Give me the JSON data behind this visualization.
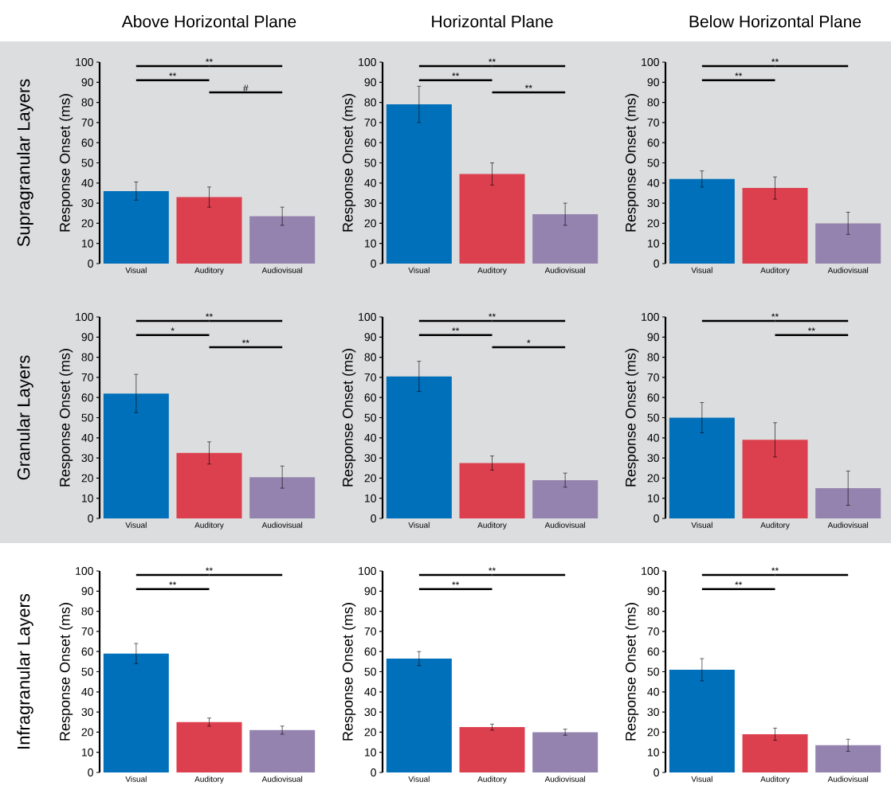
{
  "chart_data": [
    {
      "type": "bar",
      "title": "Above Horizontal Plane",
      "ylabel": "Response Onset (ms)",
      "categories": [
        "Visual",
        "Auditory",
        "Audiovisual"
      ],
      "values": [
        36,
        33,
        23.5
      ],
      "errors": [
        4.5,
        5,
        4.5
      ],
      "colors": [
        "#0070ba",
        "#dc3f4d",
        "#9383ae"
      ],
      "ylim": [
        0,
        100
      ],
      "yticks": [
        0,
        10,
        20,
        30,
        40,
        50,
        60,
        70,
        80,
        90,
        100
      ],
      "annotations": [
        "Supragranular Layers",
        "**",
        "**",
        "#"
      ]
    },
    {
      "type": "bar",
      "title": "Horizontal Plane",
      "ylabel": "Response Onset (ms)",
      "categories": [
        "Visual",
        "Auditory",
        "Audiovisual"
      ],
      "values": [
        79,
        44.5,
        24.5
      ],
      "errors": [
        9,
        5.5,
        5.5
      ],
      "colors": [
        "#0070ba",
        "#dc3f4d",
        "#9383ae"
      ],
      "ylim": [
        0,
        100
      ],
      "yticks": [
        0,
        10,
        20,
        30,
        40,
        50,
        60,
        70,
        80,
        90,
        100
      ],
      "annotations": [
        "**",
        "**",
        "**"
      ]
    },
    {
      "type": "bar",
      "title": "Below Horizontal Plane",
      "ylabel": "Response Onset (ms)",
      "categories": [
        "Visual",
        "Auditory",
        "Audiovisual"
      ],
      "values": [
        42,
        37.5,
        20
      ],
      "errors": [
        4,
        5.5,
        5.5
      ],
      "colors": [
        "#0070ba",
        "#dc3f4d",
        "#9383ae"
      ],
      "ylim": [
        0,
        100
      ],
      "yticks": [
        0,
        10,
        20,
        30,
        40,
        50,
        60,
        70,
        80,
        90,
        100
      ],
      "annotations": [
        "**",
        "**"
      ]
    },
    {
      "type": "bar",
      "ylabel": "Response Onset (ms)",
      "categories": [
        "Visual",
        "Auditory",
        "Audiovisual"
      ],
      "values": [
        62,
        32.5,
        20.5
      ],
      "errors": [
        9.5,
        5.5,
        5.5
      ],
      "colors": [
        "#0070ba",
        "#dc3f4d",
        "#9383ae"
      ],
      "ylim": [
        0,
        100
      ],
      "yticks": [
        0,
        10,
        20,
        30,
        40,
        50,
        60,
        70,
        80,
        90,
        100
      ],
      "annotations": [
        "Granular Layers",
        "**",
        "*",
        "**"
      ]
    },
    {
      "type": "bar",
      "ylabel": "Response Onset (ms)",
      "categories": [
        "Visual",
        "Auditory",
        "Audiovisual"
      ],
      "values": [
        70.5,
        27.5,
        19
      ],
      "errors": [
        7.5,
        3.5,
        3.5
      ],
      "colors": [
        "#0070ba",
        "#dc3f4d",
        "#9383ae"
      ],
      "ylim": [
        0,
        100
      ],
      "yticks": [
        0,
        10,
        20,
        30,
        40,
        50,
        60,
        70,
        80,
        90,
        100
      ],
      "annotations": [
        "**",
        "**",
        "*"
      ]
    },
    {
      "type": "bar",
      "ylabel": "Response Onset (ms)",
      "categories": [
        "Visual",
        "Auditory",
        "Audiovisual"
      ],
      "values": [
        50,
        39,
        15
      ],
      "errors": [
        7.5,
        8.5,
        8.5
      ],
      "colors": [
        "#0070ba",
        "#dc3f4d",
        "#9383ae"
      ],
      "ylim": [
        0,
        100
      ],
      "yticks": [
        0,
        10,
        20,
        30,
        40,
        50,
        60,
        70,
        80,
        90,
        100
      ],
      "annotations": [
        "**",
        "**"
      ]
    },
    {
      "type": "bar",
      "ylabel": "Response Onset (ms)",
      "categories": [
        "Visual",
        "Auditory",
        "Audiovisual"
      ],
      "values": [
        59,
        25,
        21
      ],
      "errors": [
        5,
        2,
        2
      ],
      "colors": [
        "#0070ba",
        "#dc3f4d",
        "#9383ae"
      ],
      "ylim": [
        0,
        100
      ],
      "yticks": [
        0,
        10,
        20,
        30,
        40,
        50,
        60,
        70,
        80,
        90,
        100
      ],
      "annotations": [
        "Infragranular Layers",
        "**",
        "**"
      ]
    },
    {
      "type": "bar",
      "ylabel": "Response Onset (ms)",
      "categories": [
        "Visual",
        "Auditory",
        "Audiovisual"
      ],
      "values": [
        56.5,
        22.5,
        20
      ],
      "errors": [
        3.5,
        1.5,
        1.5
      ],
      "colors": [
        "#0070ba",
        "#dc3f4d",
        "#9383ae"
      ],
      "ylim": [
        0,
        100
      ],
      "yticks": [
        0,
        10,
        20,
        30,
        40,
        50,
        60,
        70,
        80,
        90,
        100
      ],
      "annotations": [
        "**",
        "**"
      ]
    },
    {
      "type": "bar",
      "ylabel": "Response Onset (ms)",
      "categories": [
        "Visual",
        "Auditory",
        "Audiovisual"
      ],
      "values": [
        51,
        19,
        13.5
      ],
      "errors": [
        5.5,
        3,
        3
      ],
      "colors": [
        "#0070ba",
        "#dc3f4d",
        "#9383ae"
      ],
      "ylim": [
        0,
        100
      ],
      "yticks": [
        0,
        10,
        20,
        30,
        40,
        50,
        60,
        70,
        80,
        90,
        100
      ],
      "annotations": [
        "**",
        "**"
      ]
    }
  ]
}
